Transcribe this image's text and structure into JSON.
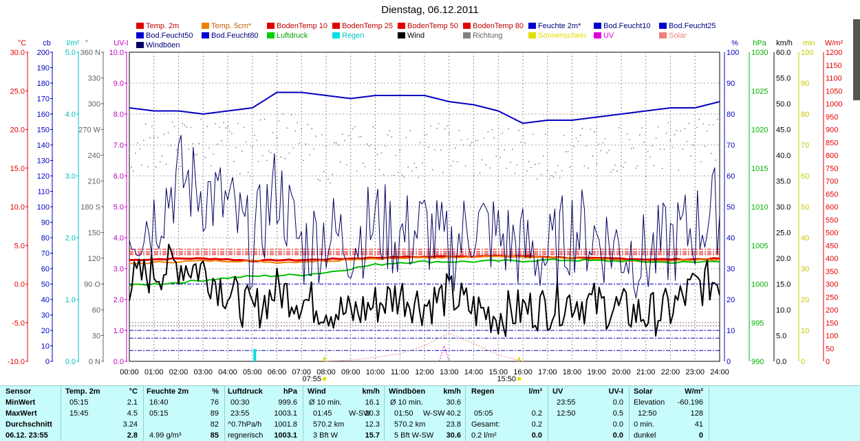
{
  "title": "Dienstag, 06.12.2011",
  "legend": [
    {
      "label": "Temp. 2m",
      "color": "#e00000"
    },
    {
      "label": "Temp. 5cm*",
      "color": "#f08000"
    },
    {
      "label": "BodenTemp 10",
      "color": "#e00000"
    },
    {
      "label": "BodenTemp 25",
      "color": "#e00000"
    },
    {
      "label": "BodenTemp 50",
      "color": "#e00000"
    },
    {
      "label": "BodenTemp 80",
      "color": "#e00000"
    },
    {
      "label": "Feuchte 2m*",
      "color": "#0000d0"
    },
    {
      "label": "Bod.Feucht10",
      "color": "#0000d0"
    },
    {
      "label": "Bod.Feucht25",
      "color": "#0000d0"
    },
    {
      "label": "Bod.Feucht50",
      "color": "#0000d0"
    },
    {
      "label": "Bod.Feucht80",
      "color": "#0000d0"
    },
    {
      "label": "Luftdruck",
      "color": "#00d000"
    },
    {
      "label": "Regen",
      "color": "#00e0e0"
    },
    {
      "label": "Wind",
      "color": "#000000"
    },
    {
      "label": "Richtung",
      "color": "#808080"
    },
    {
      "label": "Sonnenschein",
      "color": "#e0e000"
    },
    {
      "label": "UV",
      "color": "#e000e0"
    },
    {
      "label": "Solar",
      "color": "#f08080"
    },
    {
      "label": "Windböen",
      "color": "#000060"
    }
  ],
  "axes_left": [
    {
      "unit": "°C",
      "color": "#e00000",
      "ticks": [
        "30.0",
        "25.0",
        "20.0",
        "15.0",
        "10.0",
        "5.0",
        "0.0",
        "-5.0",
        "-10.0"
      ]
    },
    {
      "unit": "cb",
      "color": "#0000c0",
      "ticks": [
        "200",
        "190",
        "180",
        "170",
        "160",
        "150",
        "140",
        "130",
        "120",
        "110",
        "100",
        "90",
        "80",
        "70",
        "60",
        "50",
        "40",
        "30",
        "20",
        "10",
        "0"
      ]
    },
    {
      "unit": "l/m²",
      "color": "#00c0c0",
      "ticks": [
        "5.0",
        "4.0",
        "3.0",
        "2.0",
        "1.0",
        "0.0"
      ]
    },
    {
      "unit": "°",
      "color": "#606060",
      "ticks": [
        "360 N",
        "330",
        "300",
        "270 W",
        "240",
        "210",
        "180 S",
        "150",
        "120",
        "90 O",
        "60",
        "30",
        "0 N"
      ]
    },
    {
      "unit": "UV-I",
      "color": "#c000c0",
      "ticks": [
        "10.0",
        "9.0",
        "8.0",
        "7.0",
        "6.0",
        "5.0",
        "4.0",
        "3.0",
        "2.0",
        "1.0",
        "0.0"
      ]
    }
  ],
  "axes_right": [
    {
      "unit": "%",
      "color": "#0000c0",
      "ticks": [
        "100",
        "90",
        "80",
        "70",
        "60",
        "50",
        "40",
        "30",
        "20",
        "10",
        "0"
      ]
    },
    {
      "unit": "hPa",
      "color": "#00b000",
      "ticks": [
        "1030",
        "1025",
        "1020",
        "1015",
        "1010",
        "1005",
        "1000",
        "995",
        "990"
      ]
    },
    {
      "unit": "km/h",
      "color": "#000000",
      "ticks": [
        "60.0",
        "55.0",
        "50.0",
        "45.0",
        "40.0",
        "35.0",
        "30.0",
        "25.0",
        "20.0",
        "15.0",
        "10.0",
        "5.0",
        "0.0"
      ]
    },
    {
      "unit": "min",
      "color": "#c8c800",
      "ticks": [
        "100",
        "90",
        "80",
        "70",
        "60",
        "50",
        "40",
        "30",
        "20",
        "10",
        "0"
      ]
    },
    {
      "unit": "W/m²",
      "color": "#e00000",
      "ticks": [
        "1200",
        "1150",
        "1100",
        "1050",
        "1000",
        "950",
        "900",
        "850",
        "800",
        "750",
        "700",
        "650",
        "600",
        "550",
        "500",
        "450",
        "400",
        "350",
        "300",
        "250",
        "200",
        "150",
        "100",
        "50",
        "0"
      ]
    }
  ],
  "time_labels": [
    "00:00",
    "01:00",
    "02:00",
    "03:00",
    "04:00",
    "05:00",
    "06:00",
    "07:00",
    "08:00",
    "09:00",
    "10:00",
    "11:00",
    "12:00",
    "13:00",
    "14:00",
    "15:00",
    "16:00",
    "17:00",
    "18:00",
    "19:00",
    "20:00",
    "21:00",
    "22:00",
    "23:00",
    "24:00"
  ],
  "sunrise": "07:55",
  "sunset": "15:50",
  "chart_data": {
    "type": "line",
    "title": "Dienstag, 06.12.2011",
    "x_range": [
      0,
      24
    ],
    "series": [
      {
        "name": "Temp. 2m",
        "unit": "°C",
        "color": "#e00000",
        "x": [
          0,
          1,
          2,
          3,
          4,
          5,
          6,
          7,
          8,
          9,
          10,
          11,
          12,
          13,
          14,
          15,
          16,
          17,
          18,
          19,
          20,
          21,
          22,
          23,
          24
        ],
        "y": [
          3.1,
          3.2,
          3.3,
          3.3,
          3.2,
          3.0,
          3.1,
          3.1,
          3.2,
          3.3,
          3.4,
          3.5,
          3.5,
          3.6,
          3.6,
          3.6,
          3.6,
          3.5,
          3.4,
          3.3,
          3.3,
          3.2,
          3.2,
          3.2,
          3.3
        ]
      },
      {
        "name": "Temp. 5cm*",
        "unit": "°C",
        "color": "#f08000",
        "x": [
          0,
          1,
          2,
          3,
          4,
          5,
          6,
          7,
          8,
          9,
          10,
          11,
          12,
          13,
          14,
          15,
          16,
          17,
          18,
          19,
          20,
          21,
          22,
          23,
          24
        ],
        "y": [
          2.6,
          2.8,
          2.9,
          3.0,
          3.0,
          3.0,
          2.8,
          2.9,
          3.0,
          3.2,
          3.3,
          3.3,
          3.4,
          3.5,
          3.6,
          3.6,
          3.5,
          3.4,
          3.3,
          3.2,
          3.0,
          2.9,
          3.0,
          3.1,
          3.2
        ]
      },
      {
        "name": "Feuchte 2m*",
        "unit": "%",
        "color": "#0000c0",
        "x": [
          0,
          1,
          2,
          3,
          4,
          5,
          6,
          7,
          8,
          9,
          10,
          11,
          12,
          13,
          14,
          15,
          16,
          17,
          18,
          19,
          20,
          21,
          22,
          23,
          24
        ],
        "y": [
          82,
          81,
          81,
          80,
          81,
          82,
          87,
          87,
          86,
          85,
          86,
          86,
          86,
          84,
          83,
          81,
          77,
          78,
          78,
          79,
          80,
          81,
          82,
          82,
          84
        ]
      },
      {
        "name": "Luftdruck",
        "unit": "hPa",
        "color": "#00c000",
        "x": [
          0,
          1,
          2,
          3,
          4,
          5,
          6,
          7,
          8,
          9,
          10,
          11,
          12,
          13,
          14,
          15,
          16,
          17,
          18,
          19,
          20,
          21,
          22,
          23,
          24
        ],
        "y": [
          999.8,
          1000.0,
          1000.2,
          1000.5,
          1000.8,
          1001.0,
          1001.1,
          1001.2,
          1001.5,
          1002.0,
          1002.5,
          1002.8,
          1002.9,
          1002.9,
          1002.9,
          1003.0,
          1003.0,
          1003.1,
          1003.1,
          1003.0,
          1003.0,
          1002.9,
          1002.8,
          1002.8,
          1003.0
        ]
      },
      {
        "name": "Wind",
        "unit": "km/h",
        "color": "#000000",
        "x": [
          0,
          1,
          2,
          3,
          4,
          5,
          6,
          7,
          8,
          9,
          10,
          11,
          12,
          13,
          14,
          15,
          16,
          17,
          18,
          19,
          20,
          21,
          22,
          23,
          24
        ],
        "y": [
          15.0,
          17.5,
          19.0,
          18.0,
          13.5,
          9.5,
          14.0,
          12.0,
          10.5,
          9.0,
          11.0,
          13.0,
          11.0,
          13.0,
          10.0,
          9.0,
          10.0,
          10.5,
          12.0,
          11.0,
          10.0,
          9.0,
          10.0,
          14.5,
          16.0
        ]
      },
      {
        "name": "Windböen",
        "unit": "km/h",
        "color": "#000060",
        "x": [
          0,
          1,
          2,
          3,
          4,
          5,
          6,
          7,
          8,
          9,
          10,
          11,
          12,
          13,
          14,
          15,
          16,
          17,
          18,
          19,
          20,
          21,
          22,
          23,
          24
        ],
        "y": [
          26,
          28,
          36,
          33,
          30,
          22,
          34,
          22,
          25,
          23,
          27,
          24,
          26,
          21,
          27,
          24,
          22,
          20,
          26,
          24,
          22,
          20,
          23,
          26,
          30
        ]
      },
      {
        "name": "Richtung",
        "unit": "°",
        "color": "#808080",
        "x": [
          0,
          1,
          2,
          3,
          4,
          5,
          6,
          7,
          8,
          9,
          10,
          11,
          12,
          13,
          14,
          15,
          16,
          17,
          18,
          19,
          20,
          21,
          22,
          23,
          24
        ],
        "y": [
          240,
          255,
          250,
          260,
          250,
          245,
          270,
          250,
          235,
          245,
          250,
          240,
          245,
          250,
          240,
          245,
          250,
          235,
          245,
          240,
          250,
          245,
          250,
          255,
          265
        ]
      },
      {
        "name": "Regen",
        "unit": "l/m²",
        "color": "#00e0e0",
        "x": [
          5.1
        ],
        "y": [
          0.2
        ]
      },
      {
        "name": "Solar",
        "unit": "W/m²",
        "color": "#f08080",
        "x": [
          8,
          9,
          10,
          11,
          12,
          13,
          14,
          15,
          16
        ],
        "y": [
          0,
          5,
          15,
          30,
          60,
          110,
          70,
          25,
          0
        ]
      },
      {
        "name": "UV",
        "unit": "UV-I",
        "color": "#e000e0",
        "x": [
          12.6,
          12.8,
          13.0
        ],
        "y": [
          0,
          0.5,
          0
        ]
      }
    ],
    "reference_lines": [
      {
        "name": "BodenTemp 10",
        "unit": "°C",
        "y": 4.5,
        "color": "#e00000"
      },
      {
        "name": "BodenTemp 25",
        "unit": "°C",
        "y": 4.2,
        "color": "#e00000"
      },
      {
        "name": "BodenTemp 50",
        "unit": "°C",
        "y": 3.8,
        "color": "#e00000"
      },
      {
        "name": "BodenTemp 80",
        "unit": "°C",
        "y": 4.0,
        "color": "#e00000"
      },
      {
        "name": "Bod.Feucht10",
        "unit": "cb",
        "y": 20,
        "color": "#0000c0"
      },
      {
        "name": "Bod.Feucht25",
        "unit": "cb",
        "y": 15,
        "color": "#0000c0"
      },
      {
        "name": "Bod.Feucht50",
        "unit": "cb",
        "y": 7,
        "color": "#0000c0"
      },
      {
        "name": "Bod.Feucht80",
        "unit": "cb",
        "y": 50,
        "color": "#0000c0"
      }
    ]
  },
  "stats": {
    "sensor": {
      "header": "Sensor",
      "rows": [
        "MinWert",
        "MaxWert",
        "Durchschnitt",
        "06.12. 23:55"
      ]
    },
    "temp": {
      "header": "Temp. 2m",
      "unit": "°C",
      "rows": [
        [
          "05:15",
          "2.1"
        ],
        [
          "15:45",
          "4.5"
        ],
        [
          "",
          "3.24"
        ],
        [
          "",
          "2.8"
        ]
      ]
    },
    "feuchte": {
      "header": "Feuchte 2m",
      "unit": "%",
      "rows": [
        [
          "16:40",
          "76"
        ],
        [
          "05:15",
          "89"
        ],
        [
          "",
          "82"
        ],
        [
          "4.99 g/m³",
          "85"
        ]
      ]
    },
    "luft": {
      "header": "Luftdruck",
      "unit": "hPa",
      "rows": [
        [
          "00:30",
          "999.6"
        ],
        [
          "23:55",
          "1003.1"
        ],
        [
          "^0.7hPa/h",
          "1001.8"
        ],
        [
          "regnerisch",
          "1003.1"
        ]
      ]
    },
    "wind": {
      "header": "Wind",
      "unit": "km/h",
      "rows": [
        [
          "Ø 10 min.",
          "",
          "16.1"
        ],
        [
          "01:45",
          "W-SW",
          "20.3"
        ],
        [
          "570.2 km",
          "",
          "12.3"
        ],
        [
          "3 Bft W",
          "",
          "15.7"
        ]
      ]
    },
    "boen": {
      "header": "Windböen",
      "unit": "km/h",
      "rows": [
        [
          "Ø 10 min.",
          "",
          "30.6"
        ],
        [
          "01:50",
          "W-SW",
          "40.2"
        ],
        [
          "570.2 km",
          "",
          "23.8"
        ],
        [
          "5 Bft W-SW",
          "",
          "30.6"
        ]
      ]
    },
    "regen": {
      "header": "Regen",
      "unit": "l/m²",
      "rows": [
        [
          "",
          ""
        ],
        [
          "05:05",
          "0.2"
        ],
        [
          "Gesamt:",
          "0.2"
        ],
        [
          "0.2 l/m²",
          "0.0"
        ]
      ]
    },
    "uv": {
      "header": "UV",
      "unit": "UV-I",
      "rows": [
        [
          "23:55",
          "0.0"
        ],
        [
          "12:50",
          "0.5"
        ],
        [
          "",
          "0.0"
        ],
        [
          "",
          "0.0"
        ]
      ]
    },
    "solar": {
      "header": "Solar",
      "unit": "W/m²",
      "rows": [
        [
          "Elevation",
          "-60.196"
        ],
        [
          "12:50",
          "128"
        ],
        [
          "0 min.",
          "41"
        ],
        [
          "dunkel",
          "0"
        ]
      ]
    }
  }
}
